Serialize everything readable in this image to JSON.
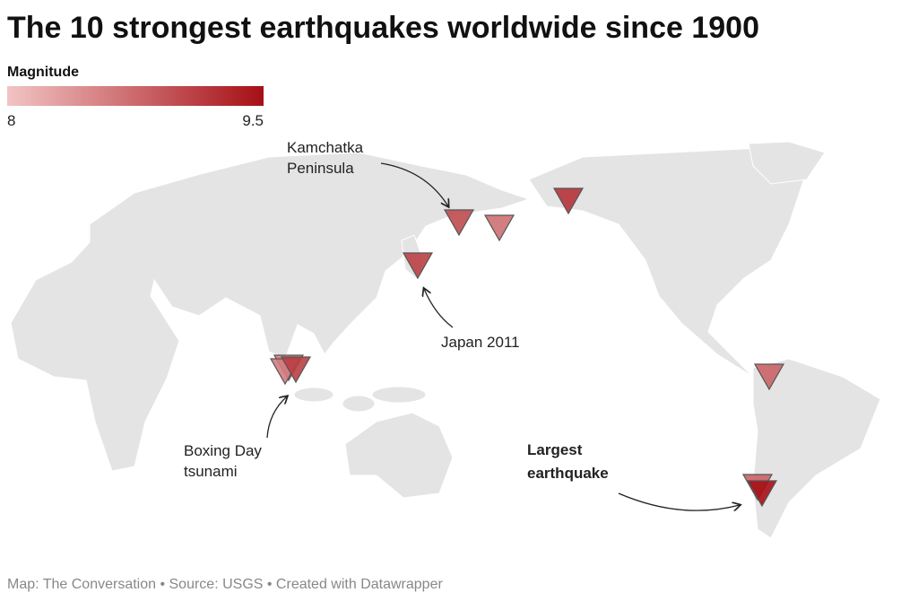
{
  "header": {
    "title": "The 10 strongest earthquakes worldwide since 1900"
  },
  "legend": {
    "title": "Magnitude",
    "min": 8,
    "max": 9.5,
    "color_min": "#f2c4c4",
    "color_max": "#a50f15"
  },
  "earthquakes": {
    "magnitudes": [
      9.5,
      9.2,
      9.1,
      9.1,
      9.0,
      8.8,
      8.8,
      8.7,
      8.6,
      8.6
    ]
  },
  "annotations": {
    "kamchatka": [
      "Kamchatka",
      "Peninsula"
    ],
    "japan": "Japan 2011",
    "boxing_day": [
      "Boxing Day",
      "tsunami"
    ],
    "largest": [
      "Largest",
      "earthquake"
    ]
  },
  "footer": "Map: The Conversation • Source: USGS • Created with Datawrapper"
}
